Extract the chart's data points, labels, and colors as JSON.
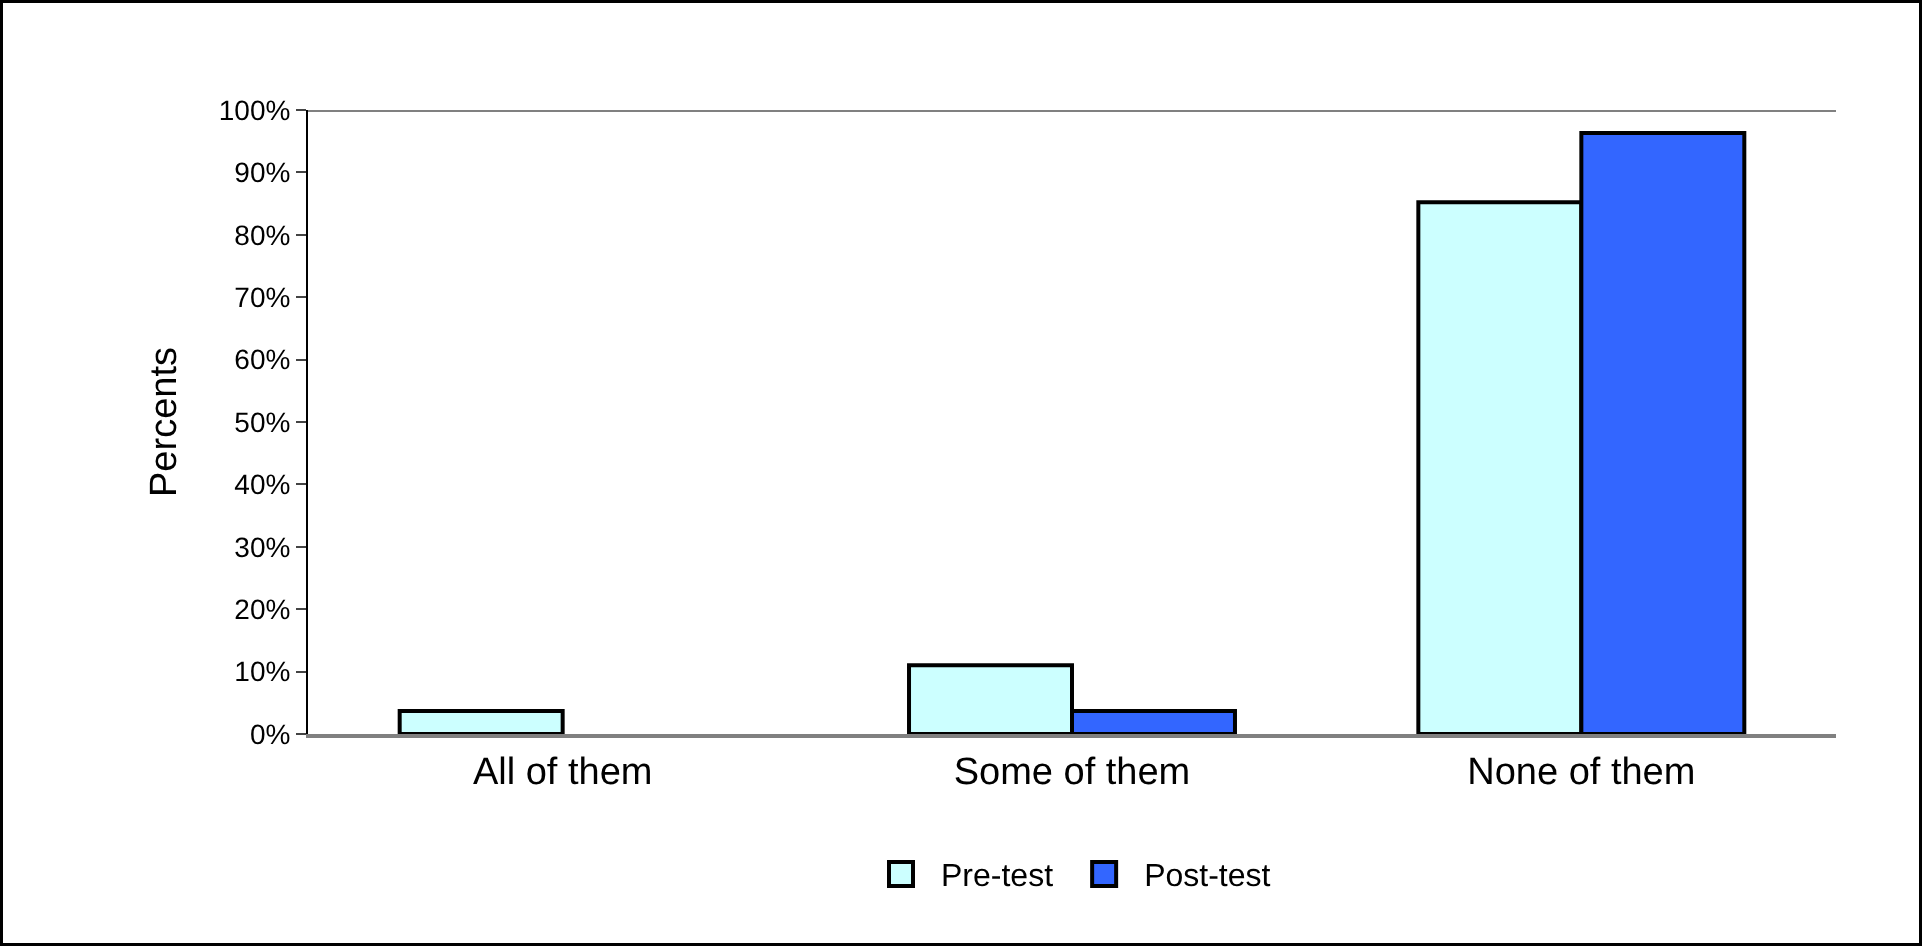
{
  "chart_data": {
    "type": "bar",
    "ylabel": "Percents",
    "categories": [
      "All of them",
      "Some of them",
      "None of them"
    ],
    "series": [
      {
        "name": "Pre-test",
        "color": "#ccffff",
        "values": [
          3.7,
          11.0,
          85.2
        ]
      },
      {
        "name": "Post-test",
        "color": "#3366ff",
        "values": [
          null,
          3.7,
          96.3
        ]
      }
    ],
    "ylim": [
      0,
      100
    ],
    "yticks": [
      {
        "value": 0,
        "label": "0%"
      },
      {
        "value": 10,
        "label": "10%"
      },
      {
        "value": 20,
        "label": "20%"
      },
      {
        "value": 30,
        "label": "30%"
      },
      {
        "value": 40,
        "label": "40%"
      },
      {
        "value": 50,
        "label": "50%"
      },
      {
        "value": 60,
        "label": "60%"
      },
      {
        "value": 70,
        "label": "70%"
      },
      {
        "value": 80,
        "label": "80%"
      },
      {
        "value": 90,
        "label": "90%"
      },
      {
        "value": 100,
        "label": "100%"
      }
    ],
    "grid": false,
    "legend": "bottom"
  }
}
